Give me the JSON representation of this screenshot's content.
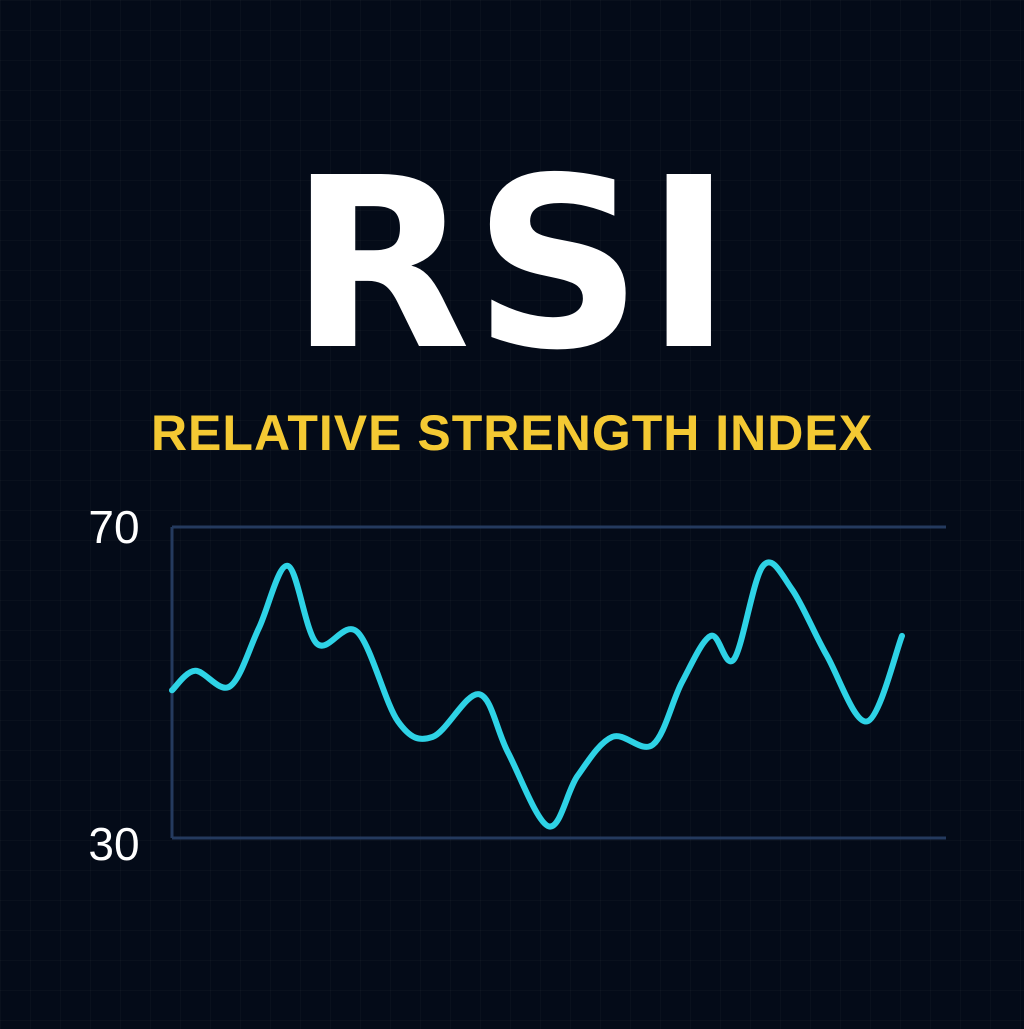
{
  "title": "RSI",
  "subtitle": "RELATIVE STRENGTH INDEX",
  "colors": {
    "background": "#040b18",
    "title": "#ffffff",
    "subtitle": "#f4c933",
    "line": "#2ed3e6",
    "reference_lines": "#243a5e",
    "tick_labels": "#ffffff"
  },
  "chart_data": {
    "type": "line",
    "title": "",
    "xlabel": "",
    "ylabel": "",
    "ylim": [
      30,
      70
    ],
    "reference_lines": [
      70,
      30
    ],
    "y_tick_labels": [
      "70",
      "30"
    ],
    "grid": false,
    "series": [
      {
        "x": [
          0,
          4,
          10,
          15,
          20,
          25,
          32,
          39,
          45,
          53,
          58,
          65,
          70,
          76,
          83,
          88,
          93,
          97,
          102,
          107,
          113,
          120,
          126
        ],
        "y": [
          49,
          51.5,
          49.5,
          57,
          65,
          55,
          56.5,
          45,
          43,
          48.5,
          41,
          31.5,
          38,
          43,
          42,
          50,
          56,
          53,
          65,
          62,
          53.5,
          45,
          56
        ]
      }
    ]
  }
}
